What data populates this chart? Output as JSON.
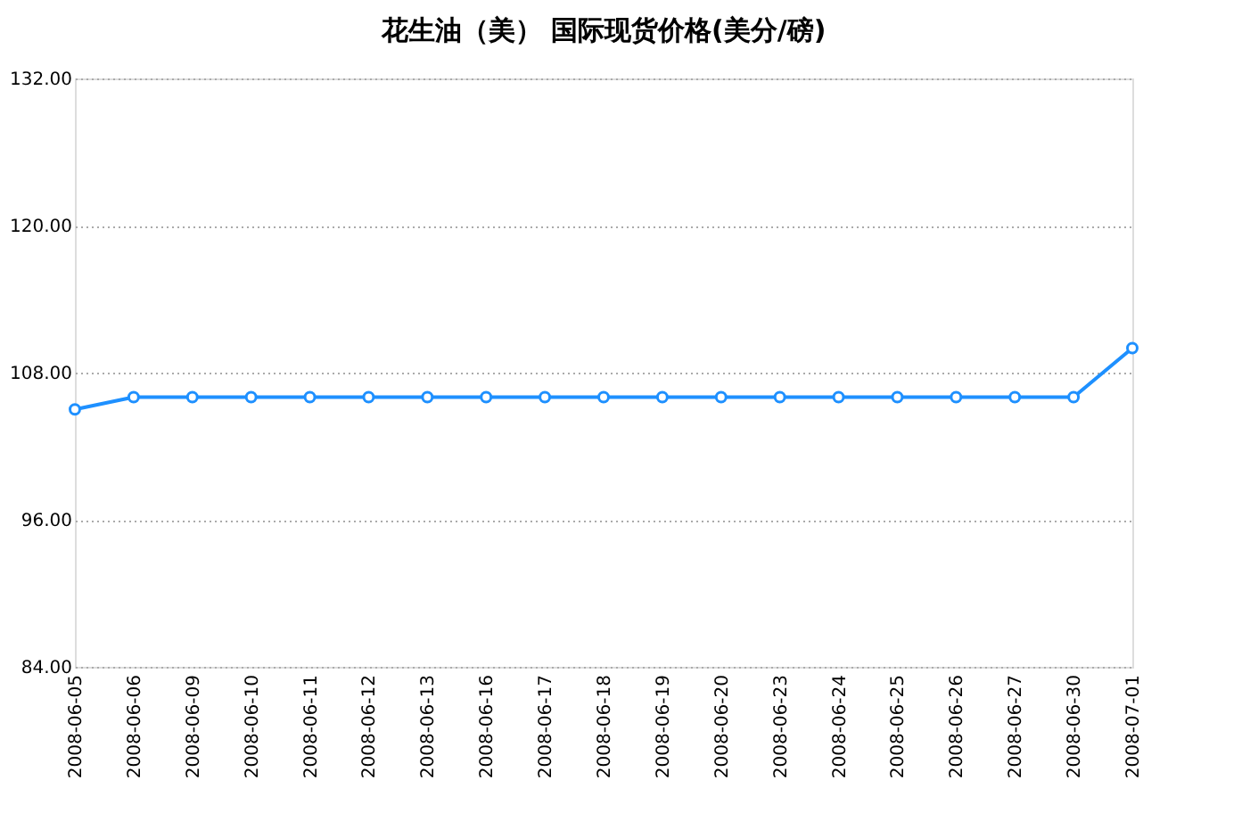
{
  "chart_data": {
    "type": "line",
    "title": "花生油（美）  国际现货价格(美分/磅)",
    "categories": [
      "2008-06-05",
      "2008-06-06",
      "2008-06-09",
      "2008-06-10",
      "2008-06-11",
      "2008-06-12",
      "2008-06-13",
      "2008-06-16",
      "2008-06-17",
      "2008-06-18",
      "2008-06-19",
      "2008-06-20",
      "2008-06-23",
      "2008-06-24",
      "2008-06-25",
      "2008-06-26",
      "2008-06-27",
      "2008-06-30",
      "2008-07-01"
    ],
    "series": [
      {
        "color": "#1e90ff",
        "values": [
          105,
          106,
          106,
          106,
          106,
          106,
          106,
          106,
          106,
          106,
          106,
          106,
          106,
          106,
          106,
          106,
          106,
          106,
          110
        ]
      }
    ],
    "ylim": [
      84,
      132
    ],
    "yticks": [
      {
        "value": 84,
        "label": "84.00"
      },
      {
        "value": 96,
        "label": "96.00"
      },
      {
        "value": 108,
        "label": "108.00"
      },
      {
        "value": 120,
        "label": "120.00"
      },
      {
        "value": 132,
        "label": "132.00"
      }
    ],
    "grid": "y",
    "marker": "circle",
    "line_style": "solid",
    "legend": false
  }
}
